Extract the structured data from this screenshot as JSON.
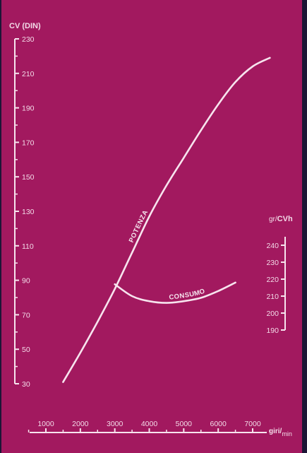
{
  "chart_data": {
    "type": "line",
    "colors": {
      "background": "#a2195f",
      "frame": "#1d1536",
      "ink": "#f7e4ee"
    },
    "left_axis": {
      "title": "CV (DIN)",
      "ticks": [
        30,
        50,
        70,
        90,
        110,
        130,
        150,
        170,
        190,
        210,
        230
      ],
      "tick_labels": [
        "30",
        "50",
        "70",
        "90",
        "110",
        "130",
        "150",
        "170",
        "190",
        "210",
        "230"
      ],
      "range": [
        30,
        230
      ]
    },
    "right_axis": {
      "title_prefix": "gr/",
      "title_main": "CVh",
      "ticks": [
        190,
        200,
        210,
        220,
        230,
        240
      ],
      "tick_labels": [
        "190",
        "200",
        "210",
        "220",
        "230",
        "240"
      ],
      "range": [
        190,
        240
      ]
    },
    "x_axis": {
      "title_main": "giri/",
      "title_sub": "min",
      "ticks": [
        1000,
        2000,
        3000,
        4000,
        5000,
        6000,
        7000
      ],
      "tick_labels": [
        "1000",
        "2000",
        "3000",
        "4000",
        "5000",
        "6000",
        "7000"
      ],
      "range": [
        500,
        7900
      ]
    },
    "series": [
      {
        "name": "POTENZA",
        "axis": "left",
        "x": [
          1500,
          2000,
          2500,
          3000,
          3500,
          4000,
          4500,
          5000,
          5500,
          6000,
          6500,
          7000,
          7500
        ],
        "y": [
          31,
          48,
          66,
          85,
          106,
          127,
          145,
          161,
          177,
          192,
          205,
          214,
          219
        ]
      },
      {
        "name": "CONSUMO",
        "axis": "right",
        "x": [
          3000,
          3500,
          4000,
          4500,
          5000,
          5500,
          6000,
          6500
        ],
        "y": [
          217,
          210,
          207,
          206,
          207,
          209,
          213,
          218
        ]
      }
    ]
  }
}
